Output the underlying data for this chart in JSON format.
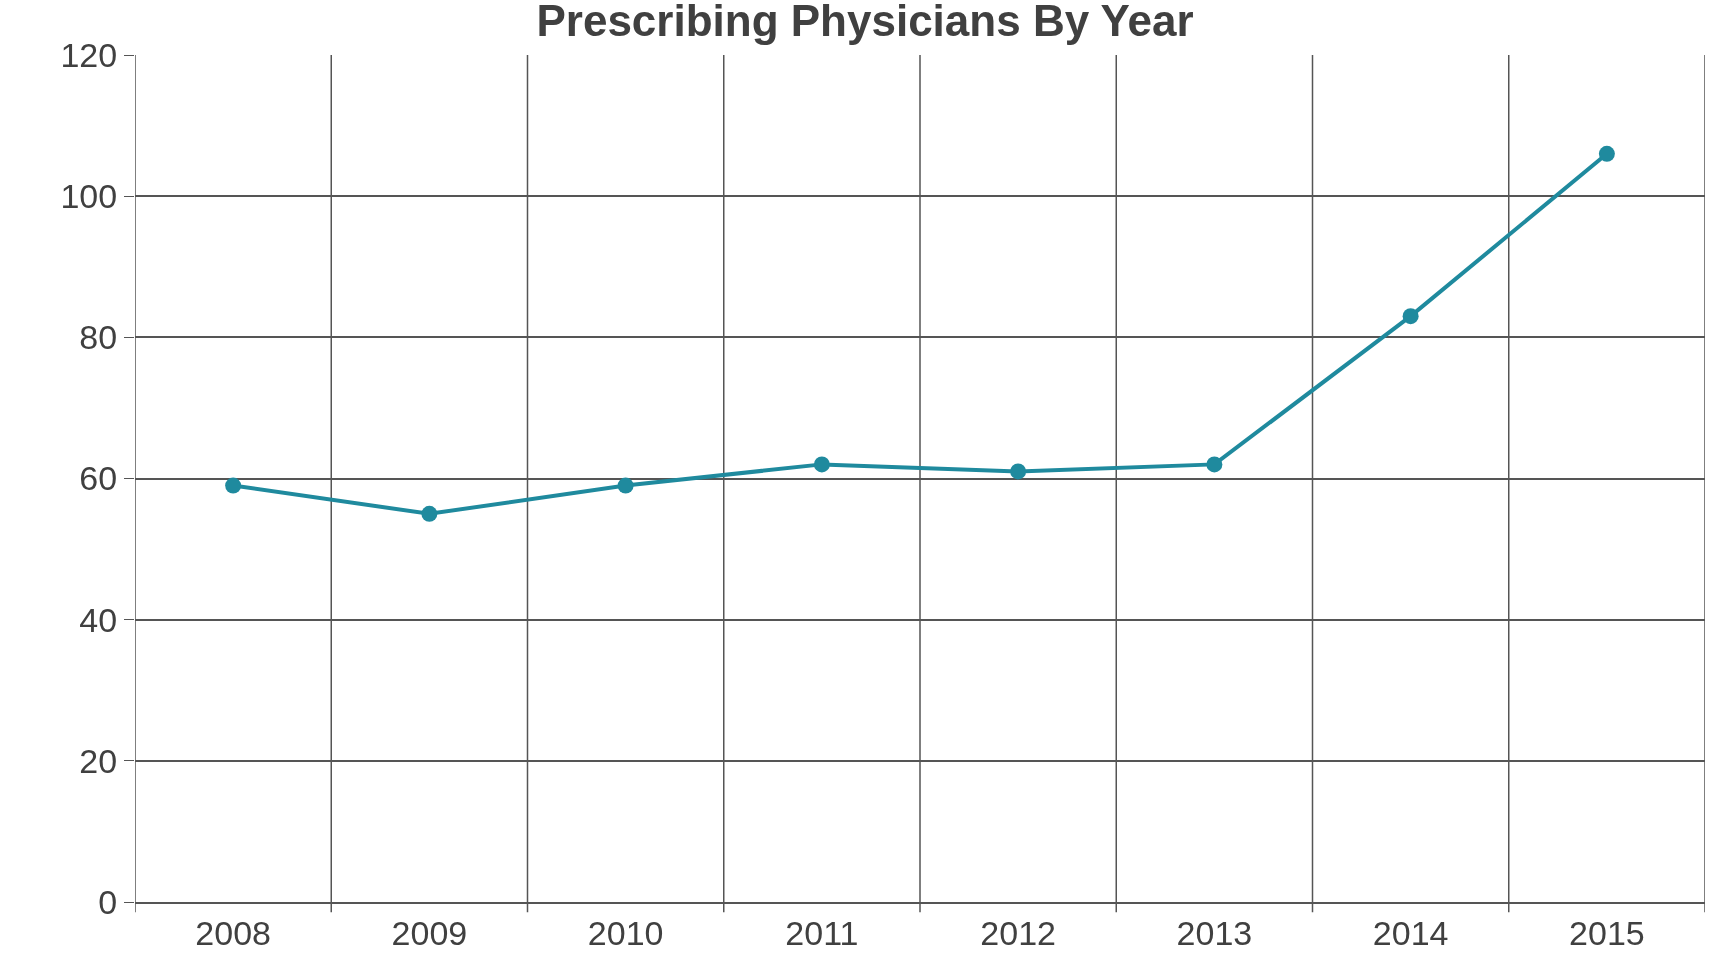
{
  "chart_data": {
    "type": "line",
    "title": "Prescribing Physicians By Year",
    "categories": [
      "2008",
      "2009",
      "2010",
      "2011",
      "2012",
      "2013",
      "2014",
      "2015"
    ],
    "series": [
      {
        "color": "#1f8a9e",
        "values": [
          59,
          55,
          59,
          62,
          61,
          62,
          83,
          106
        ]
      }
    ],
    "ylim": [
      0,
      120
    ],
    "yticks": [
      0,
      20,
      40,
      60,
      80,
      100,
      120
    ],
    "grid": true,
    "marker": "circle",
    "line_style": "solid"
  }
}
